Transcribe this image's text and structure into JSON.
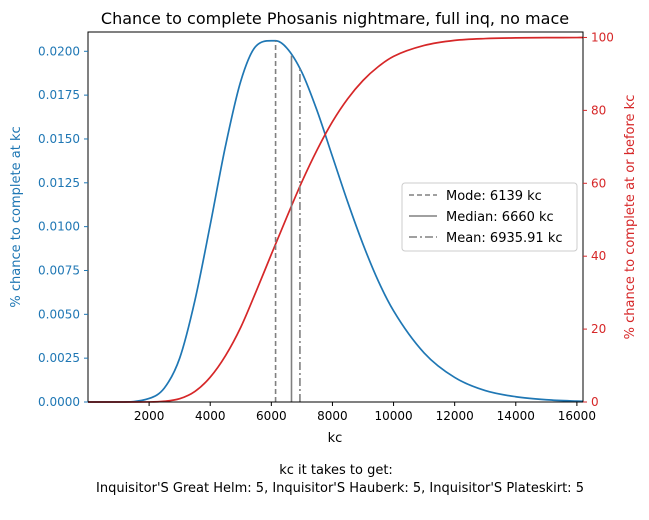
{
  "chart_data": {
    "type": "line",
    "title": "Chance to complete Phosanis nightmare, full inq, no mace",
    "xlabel": "kc",
    "ylabel_left": "% chance to complete at kc",
    "ylabel_right": "% chance to complete at or before kc",
    "footer_line1": "kc it takes to get:",
    "footer_line2": "Inquisitor'S Great Helm: 5,  Inquisitor'S Hauberk: 5,  Inquisitor'S Plateskirt: 5",
    "xlim": [
      0,
      16200
    ],
    "ylim_left": [
      0,
      0.0211
    ],
    "ylim_right": [
      0,
      101.5
    ],
    "x_ticks": [
      2000,
      4000,
      6000,
      8000,
      10000,
      12000,
      14000,
      16000
    ],
    "x_tick_labels": [
      "2000",
      "4000",
      "6000",
      "8000",
      "10000",
      "12000",
      "14000",
      "16000"
    ],
    "y_left_ticks": [
      0,
      0.0025,
      0.005,
      0.0075,
      0.01,
      0.0125,
      0.015,
      0.0175,
      0.02
    ],
    "y_left_tick_labels": [
      "0.0000",
      "0.0025",
      "0.0050",
      "0.0075",
      "0.0100",
      "0.0125",
      "0.0150",
      "0.0175",
      "0.0200"
    ],
    "y_right_ticks": [
      0,
      20,
      40,
      60,
      80,
      100
    ],
    "y_right_tick_labels": [
      "0",
      "20",
      "40",
      "60",
      "80",
      "100"
    ],
    "series": [
      {
        "name": "pmf",
        "axis": "left",
        "color": "#1f77b4",
        "x": [
          0,
          1000,
          2000,
          2500,
          3000,
          3500,
          4000,
          4500,
          5000,
          5500,
          6000,
          6139,
          6500,
          7000,
          7500,
          8000,
          8500,
          9000,
          9500,
          10000,
          11000,
          12000,
          13000,
          14000,
          15000,
          16000,
          16200
        ],
        "y": [
          0,
          3e-07,
          0.0002,
          0.0008,
          0.0025,
          0.0058,
          0.0101,
          0.0146,
          0.0183,
          0.0203,
          0.0206,
          0.0206,
          0.0202,
          0.0188,
          0.0166,
          0.014,
          0.0114,
          0.009,
          0.0069,
          0.0052,
          0.0028,
          0.0014,
          0.00065,
          0.0003,
          0.00013,
          5e-05,
          4e-05
        ]
      },
      {
        "name": "cdf",
        "axis": "right",
        "color": "#d62728",
        "x": [
          0,
          1000,
          2000,
          2500,
          3000,
          3500,
          4000,
          4500,
          5000,
          5500,
          6000,
          6500,
          7000,
          7500,
          8000,
          8500,
          9000,
          9500,
          10000,
          11000,
          12000,
          13000,
          14000,
          15000,
          16000,
          16200
        ],
        "y": [
          0,
          0,
          0.02,
          0.2,
          0.9,
          2.9,
          6.8,
          12.7,
          20.5,
          30.3,
          40.5,
          50.6,
          60.4,
          69.2,
          76.9,
          83.2,
          88.2,
          92.0,
          94.8,
          97.8,
          99.2,
          99.7,
          99.88,
          99.95,
          99.98,
          99.99
        ]
      }
    ],
    "legend": {
      "placement": "center-right",
      "entries": [
        {
          "label": "Mode: 6139 kc",
          "style": "dashed",
          "x": 6139
        },
        {
          "label": "Median: 6660 kc",
          "style": "solid",
          "x": 6660
        },
        {
          "label": "Mean: 6935.91 kc",
          "style": "dashdot",
          "x": 6935.91
        }
      ]
    },
    "colors": {
      "left_axis": "#1f77b4",
      "right_axis": "#d62728",
      "stat_lines": "#808080"
    }
  }
}
